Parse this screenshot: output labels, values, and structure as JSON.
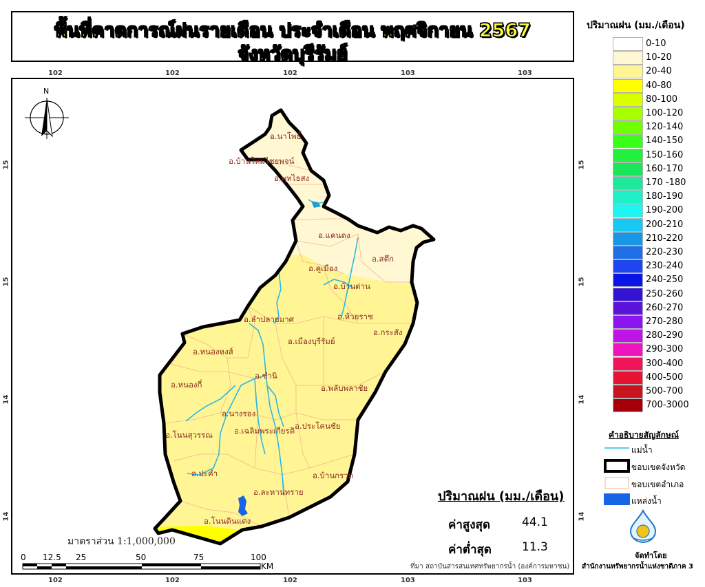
{
  "title": {
    "line1": "พื้นที่คาดการณ์ฝนรายเดือน ประจำเดือน พฤศจิกายน 2567",
    "line2": "จังหวัดบุรีรัมย์"
  },
  "grid_ticks": {
    "top": [
      "102",
      "102",
      "102",
      "103",
      "103"
    ],
    "bottom": [
      "102",
      "102",
      "102",
      "103",
      "103"
    ],
    "left": [
      "15",
      "15",
      "14",
      "14"
    ],
    "right": [
      "15",
      "15",
      "14",
      "14"
    ]
  },
  "north_arrow": {
    "label": "N"
  },
  "legend": {
    "title": "ปริมาณฝน (มม./เดือน)",
    "classes": [
      {
        "label": "0-10",
        "color": "#ffffff"
      },
      {
        "label": "10-20",
        "color": "#fff8d2"
      },
      {
        "label": "20-40",
        "color": "#fff595"
      },
      {
        "label": "40-80",
        "color": "#ffff00"
      },
      {
        "label": "80-100",
        "color": "#d9ff00"
      },
      {
        "label": "100-120",
        "color": "#a8ff00"
      },
      {
        "label": "120-140",
        "color": "#70ff00"
      },
      {
        "label": "140-150",
        "color": "#38ff19"
      },
      {
        "label": "150-160",
        "color": "#22f03c"
      },
      {
        "label": "160-170",
        "color": "#19e65a"
      },
      {
        "label": "170 -180",
        "color": "#1ee89a"
      },
      {
        "label": "180-190",
        "color": "#1ef0c8"
      },
      {
        "label": "190-200",
        "color": "#1ef5f0"
      },
      {
        "label": "200-210",
        "color": "#17c8f5"
      },
      {
        "label": "210-220",
        "color": "#1996e6"
      },
      {
        "label": "220-230",
        "color": "#1e6ee6"
      },
      {
        "label": "230-240",
        "color": "#1e46f0"
      },
      {
        "label": "240-250",
        "color": "#0a14e6"
      },
      {
        "label": "250-260",
        "color": "#3214d2"
      },
      {
        "label": "260-270",
        "color": "#5a14dc"
      },
      {
        "label": "270-280",
        "color": "#8c14f0"
      },
      {
        "label": "280-290",
        "color": "#be14e6"
      },
      {
        "label": "290-300",
        "color": "#f014be"
      },
      {
        "label": "300-400",
        "color": "#f0145a"
      },
      {
        "label": "400-500",
        "color": "#e61432"
      },
      {
        "label": "500-700",
        "color": "#c8141e"
      },
      {
        "label": "700-3000",
        "color": "#a5000a"
      }
    ]
  },
  "symbols": {
    "title": "คำอธิบายสัญลักษณ์",
    "items": [
      {
        "label": "แม่น้ำ"
      },
      {
        "label": "ขอบเขตจังหวัด"
      },
      {
        "label": "ขอบเขตอำเภอ"
      },
      {
        "label": "แหล่งน้ำ"
      }
    ]
  },
  "districts": [
    "อ.นาโพธิ์",
    "อ.บ้านใหม่ไชยพจน์",
    "อ.พุทไธสง",
    "อ.แคนดง",
    "อ.สตึก",
    "อ.คูเมือง",
    "อ.บ้านด่าน",
    "อ.ลำปลายมาศ",
    "อ.ห้วยราช",
    "อ.กระสัง",
    "อ.หนองหงส์",
    "อ.เมืองบุรีรัมย์",
    "อ.ชำนิ",
    "อ.หนองกี่",
    "อ.พลับพลาชัย",
    "อ.นางรอง",
    "อ.โนนสุวรรณ",
    "อ.เฉลิมพระเกียรติ",
    "อ.ประโคนชัย",
    "อ.ปะคำ",
    "อ.บ้านกรวด",
    "อ.ละหานทราย",
    "อ.โนนดินแดง"
  ],
  "rainfall_summary": {
    "title": "ปริมาณฝน (มม./เดือน)",
    "max_label": "ค่าสูงสุด",
    "max_value": "44.1",
    "min_label": "ค่าต่ำสุด",
    "min_value": "11.3"
  },
  "scale": {
    "text": "มาตราส่วน 1:1,000,000",
    "bar_labels": [
      "0",
      "12.5",
      "25",
      "50",
      "75",
      "100"
    ],
    "unit": "KM"
  },
  "credits": {
    "source": "ที่มา  สถาบันสารสนเทศทรัพยากรน้ำ (องค์การมหาชน)",
    "made_by": "จัดทำโดย",
    "agency": "สำนักงานทรัพยากรน้ำแห่งชาติภาค 3"
  }
}
